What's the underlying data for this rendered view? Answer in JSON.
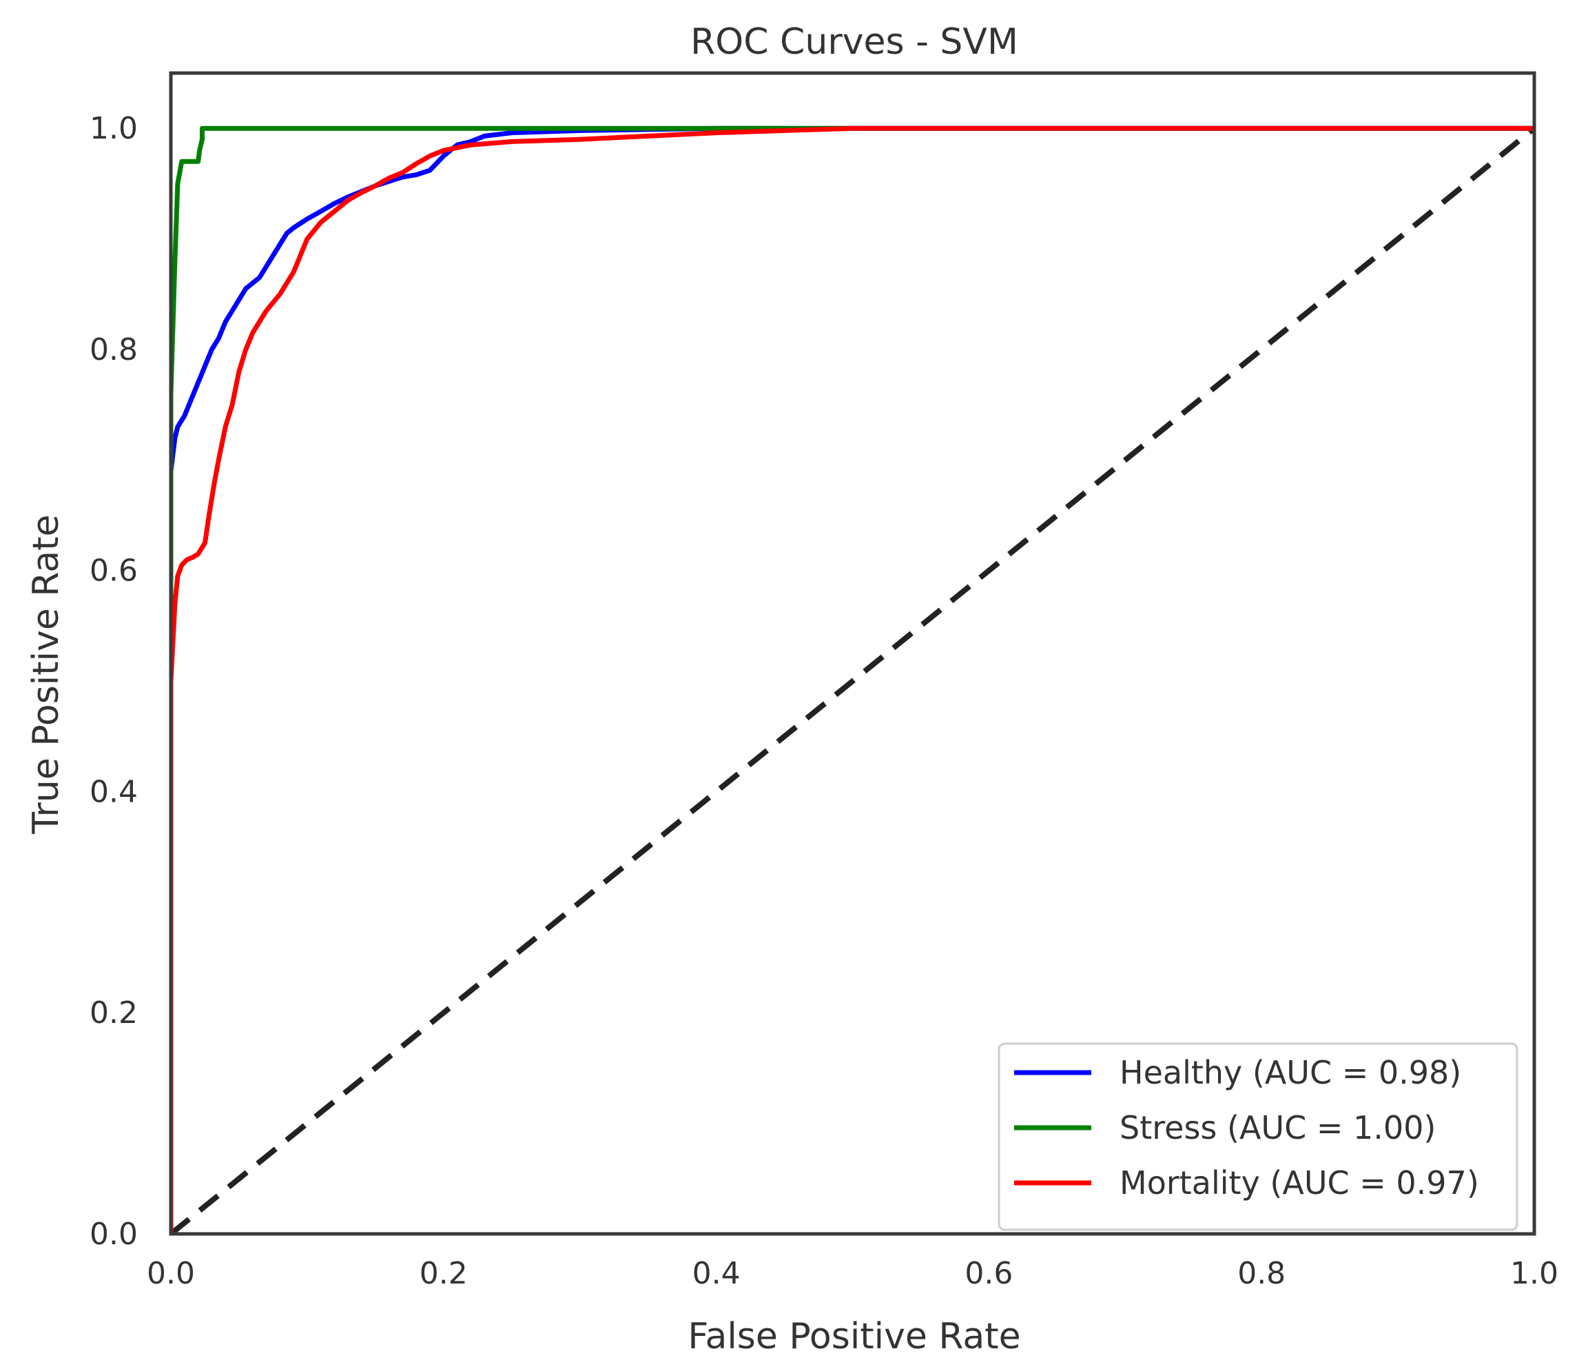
{
  "chart_data": {
    "type": "line",
    "title": "ROC Curves - SVM",
    "xlabel": "False Positive Rate",
    "ylabel": "True Positive Rate",
    "xlim": [
      0.0,
      1.0
    ],
    "ylim": [
      0.0,
      1.05
    ],
    "xticks": [
      "0.0",
      "0.2",
      "0.4",
      "0.6",
      "0.8",
      "1.0"
    ],
    "yticks": [
      "0.0",
      "0.2",
      "0.4",
      "0.6",
      "0.8",
      "1.0"
    ],
    "grid": false,
    "legend_position": "lower-right",
    "series": [
      {
        "name": "Healthy (AUC = 0.98)",
        "color": "#0000ff",
        "x": [
          0.0,
          0.0,
          0.003,
          0.005,
          0.01,
          0.015,
          0.02,
          0.025,
          0.03,
          0.035,
          0.04,
          0.045,
          0.05,
          0.055,
          0.06,
          0.065,
          0.07,
          0.075,
          0.08,
          0.085,
          0.09,
          0.1,
          0.11,
          0.12,
          0.13,
          0.14,
          0.15,
          0.16,
          0.17,
          0.18,
          0.19,
          0.2,
          0.21,
          0.22,
          0.23,
          0.25,
          0.3,
          0.4,
          0.5,
          0.6,
          0.8,
          1.0
        ],
        "y": [
          0.0,
          0.69,
          0.72,
          0.73,
          0.74,
          0.755,
          0.77,
          0.785,
          0.8,
          0.81,
          0.825,
          0.835,
          0.845,
          0.855,
          0.86,
          0.865,
          0.875,
          0.885,
          0.895,
          0.905,
          0.91,
          0.918,
          0.925,
          0.932,
          0.938,
          0.943,
          0.948,
          0.952,
          0.956,
          0.958,
          0.962,
          0.975,
          0.985,
          0.988,
          0.993,
          0.996,
          0.998,
          1.0,
          1.0,
          1.0,
          1.0,
          1.0
        ]
      },
      {
        "name": "Stress (AUC = 1.00)",
        "color": "#008000",
        "x": [
          0.0,
          0.0,
          0.003,
          0.005,
          0.008,
          0.008,
          0.02,
          0.021,
          0.023,
          0.023,
          0.2,
          0.5,
          1.0
        ],
        "y": [
          0.0,
          0.76,
          0.88,
          0.95,
          0.97,
          0.97,
          0.97,
          0.98,
          0.99,
          1.0,
          1.0,
          1.0,
          1.0
        ]
      },
      {
        "name": "Mortality (AUC = 0.97)",
        "color": "#ff0000",
        "x": [
          0.0,
          0.0,
          0.003,
          0.005,
          0.008,
          0.012,
          0.016,
          0.02,
          0.025,
          0.028,
          0.032,
          0.035,
          0.04,
          0.045,
          0.05,
          0.055,
          0.06,
          0.065,
          0.07,
          0.08,
          0.09,
          0.1,
          0.11,
          0.12,
          0.13,
          0.14,
          0.15,
          0.16,
          0.17,
          0.18,
          0.19,
          0.2,
          0.22,
          0.25,
          0.3,
          0.35,
          0.4,
          0.5,
          0.6,
          0.8,
          1.0
        ],
        "y": [
          0.0,
          0.5,
          0.57,
          0.595,
          0.605,
          0.61,
          0.612,
          0.615,
          0.625,
          0.65,
          0.68,
          0.7,
          0.73,
          0.75,
          0.78,
          0.8,
          0.815,
          0.825,
          0.835,
          0.85,
          0.87,
          0.9,
          0.915,
          0.925,
          0.935,
          0.942,
          0.948,
          0.955,
          0.96,
          0.968,
          0.975,
          0.98,
          0.985,
          0.988,
          0.99,
          0.993,
          0.996,
          1.0,
          1.0,
          1.0,
          1.0
        ]
      },
      {
        "name": "",
        "color": "#222222",
        "dashed": true,
        "x": [
          0.0,
          1.0
        ],
        "y": [
          0.0,
          1.0
        ]
      }
    ]
  }
}
